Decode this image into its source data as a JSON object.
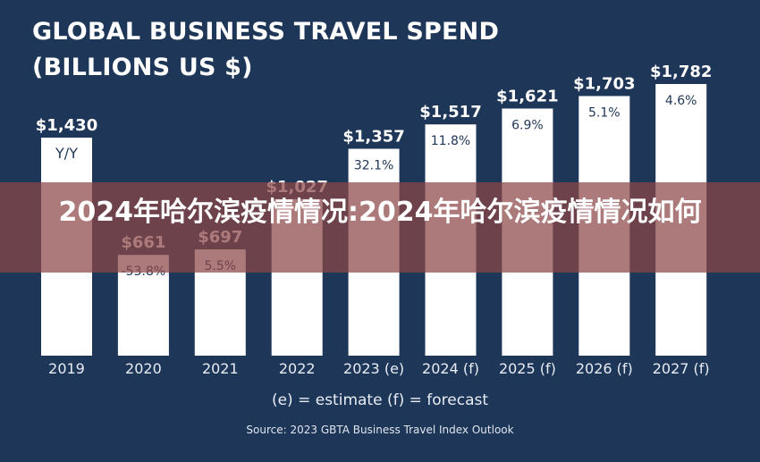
{
  "title_line1": "GLOBAL BUSINESS TRAVEL SPEND",
  "title_line2": "(BILLIONS US $)",
  "legend_text": "(e) = estimate    (f) = forecast",
  "source_text": "Source: 2023 GBTA Business Travel Index Outlook",
  "banner_text": "2024年哈尔滨疫情情况:2024年哈尔滨疫情情况如何",
  "colors": {
    "background": "#1e3658",
    "bar": "#ffffff",
    "value_label": "#ffffff",
    "yoy_label": "#1e3658",
    "banner": "#8c4646"
  },
  "chart_data": {
    "type": "bar",
    "title": "GLOBAL BUSINESS TRAVEL SPEND (BILLIONS US $)",
    "categories": [
      "2019",
      "2020",
      "2021",
      "2022",
      "2023 (e)",
      "2024 (f)",
      "2025 (f)",
      "2026 (f)",
      "2027 (f)"
    ],
    "values": [
      1430,
      661,
      697,
      1027,
      1357,
      1517,
      1621,
      1703,
      1782
    ],
    "value_labels": [
      "$1,430",
      "$661",
      "$697",
      "$1,027",
      "$1,357",
      "$1,517",
      "$1,621",
      "$1,703",
      "$1,782"
    ],
    "yoy_labels": [
      "Y/Y",
      "-53.8%",
      "5.5%",
      "",
      "32.1%",
      "11.8%",
      "6.9%",
      "5.1%",
      "4.6%"
    ],
    "ylim": [
      0,
      1782
    ],
    "grid": false,
    "legend": "bottom"
  }
}
